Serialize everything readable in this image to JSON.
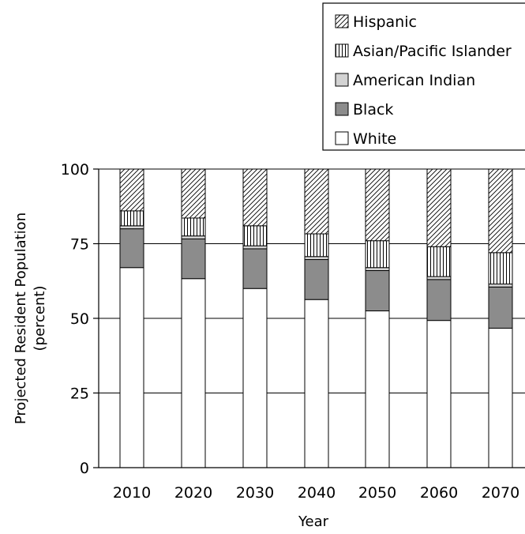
{
  "chart_data": {
    "type": "bar",
    "stacked": true,
    "categories": [
      "2010",
      "2020",
      "2030",
      "2040",
      "2050",
      "2060",
      "2070"
    ],
    "series": [
      {
        "name": "White",
        "values": [
          67,
          63.3,
          60,
          56.3,
          52.5,
          49.3,
          46.7
        ],
        "pattern": "white",
        "color": "#ffffff"
      },
      {
        "name": "Black",
        "values": [
          13,
          13.3,
          13.3,
          13.4,
          13.5,
          13.7,
          13.8
        ],
        "pattern": "gray",
        "color": "#8c8c8c"
      },
      {
        "name": "American Indian",
        "values": [
          1,
          1,
          1,
          1,
          1,
          1,
          1
        ],
        "pattern": "light",
        "color": "#d3d3d3"
      },
      {
        "name": "Asian/Pacific Islander",
        "values": [
          5,
          6,
          6.7,
          7.6,
          9,
          10,
          10.5
        ],
        "pattern": "vertical",
        "color": "#ffffff"
      },
      {
        "name": "Hispanic",
        "values": [
          14,
          16.4,
          19,
          21.7,
          24,
          26,
          28
        ],
        "pattern": "diagonal",
        "color": "#ffffff"
      }
    ],
    "legend_order": [
      "Hispanic",
      "Asian/Pacific Islander",
      "American Indian",
      "Black",
      "White"
    ],
    "xlabel": "Year",
    "ylabel": "Projected Resident Population (percent)",
    "ylabel_lines": [
      "Projected Resident Population",
      "(percent)"
    ],
    "ylim": [
      0,
      100
    ],
    "yticks": [
      0,
      25,
      50,
      75,
      100
    ],
    "grid": true,
    "legend_position": "top-right"
  }
}
